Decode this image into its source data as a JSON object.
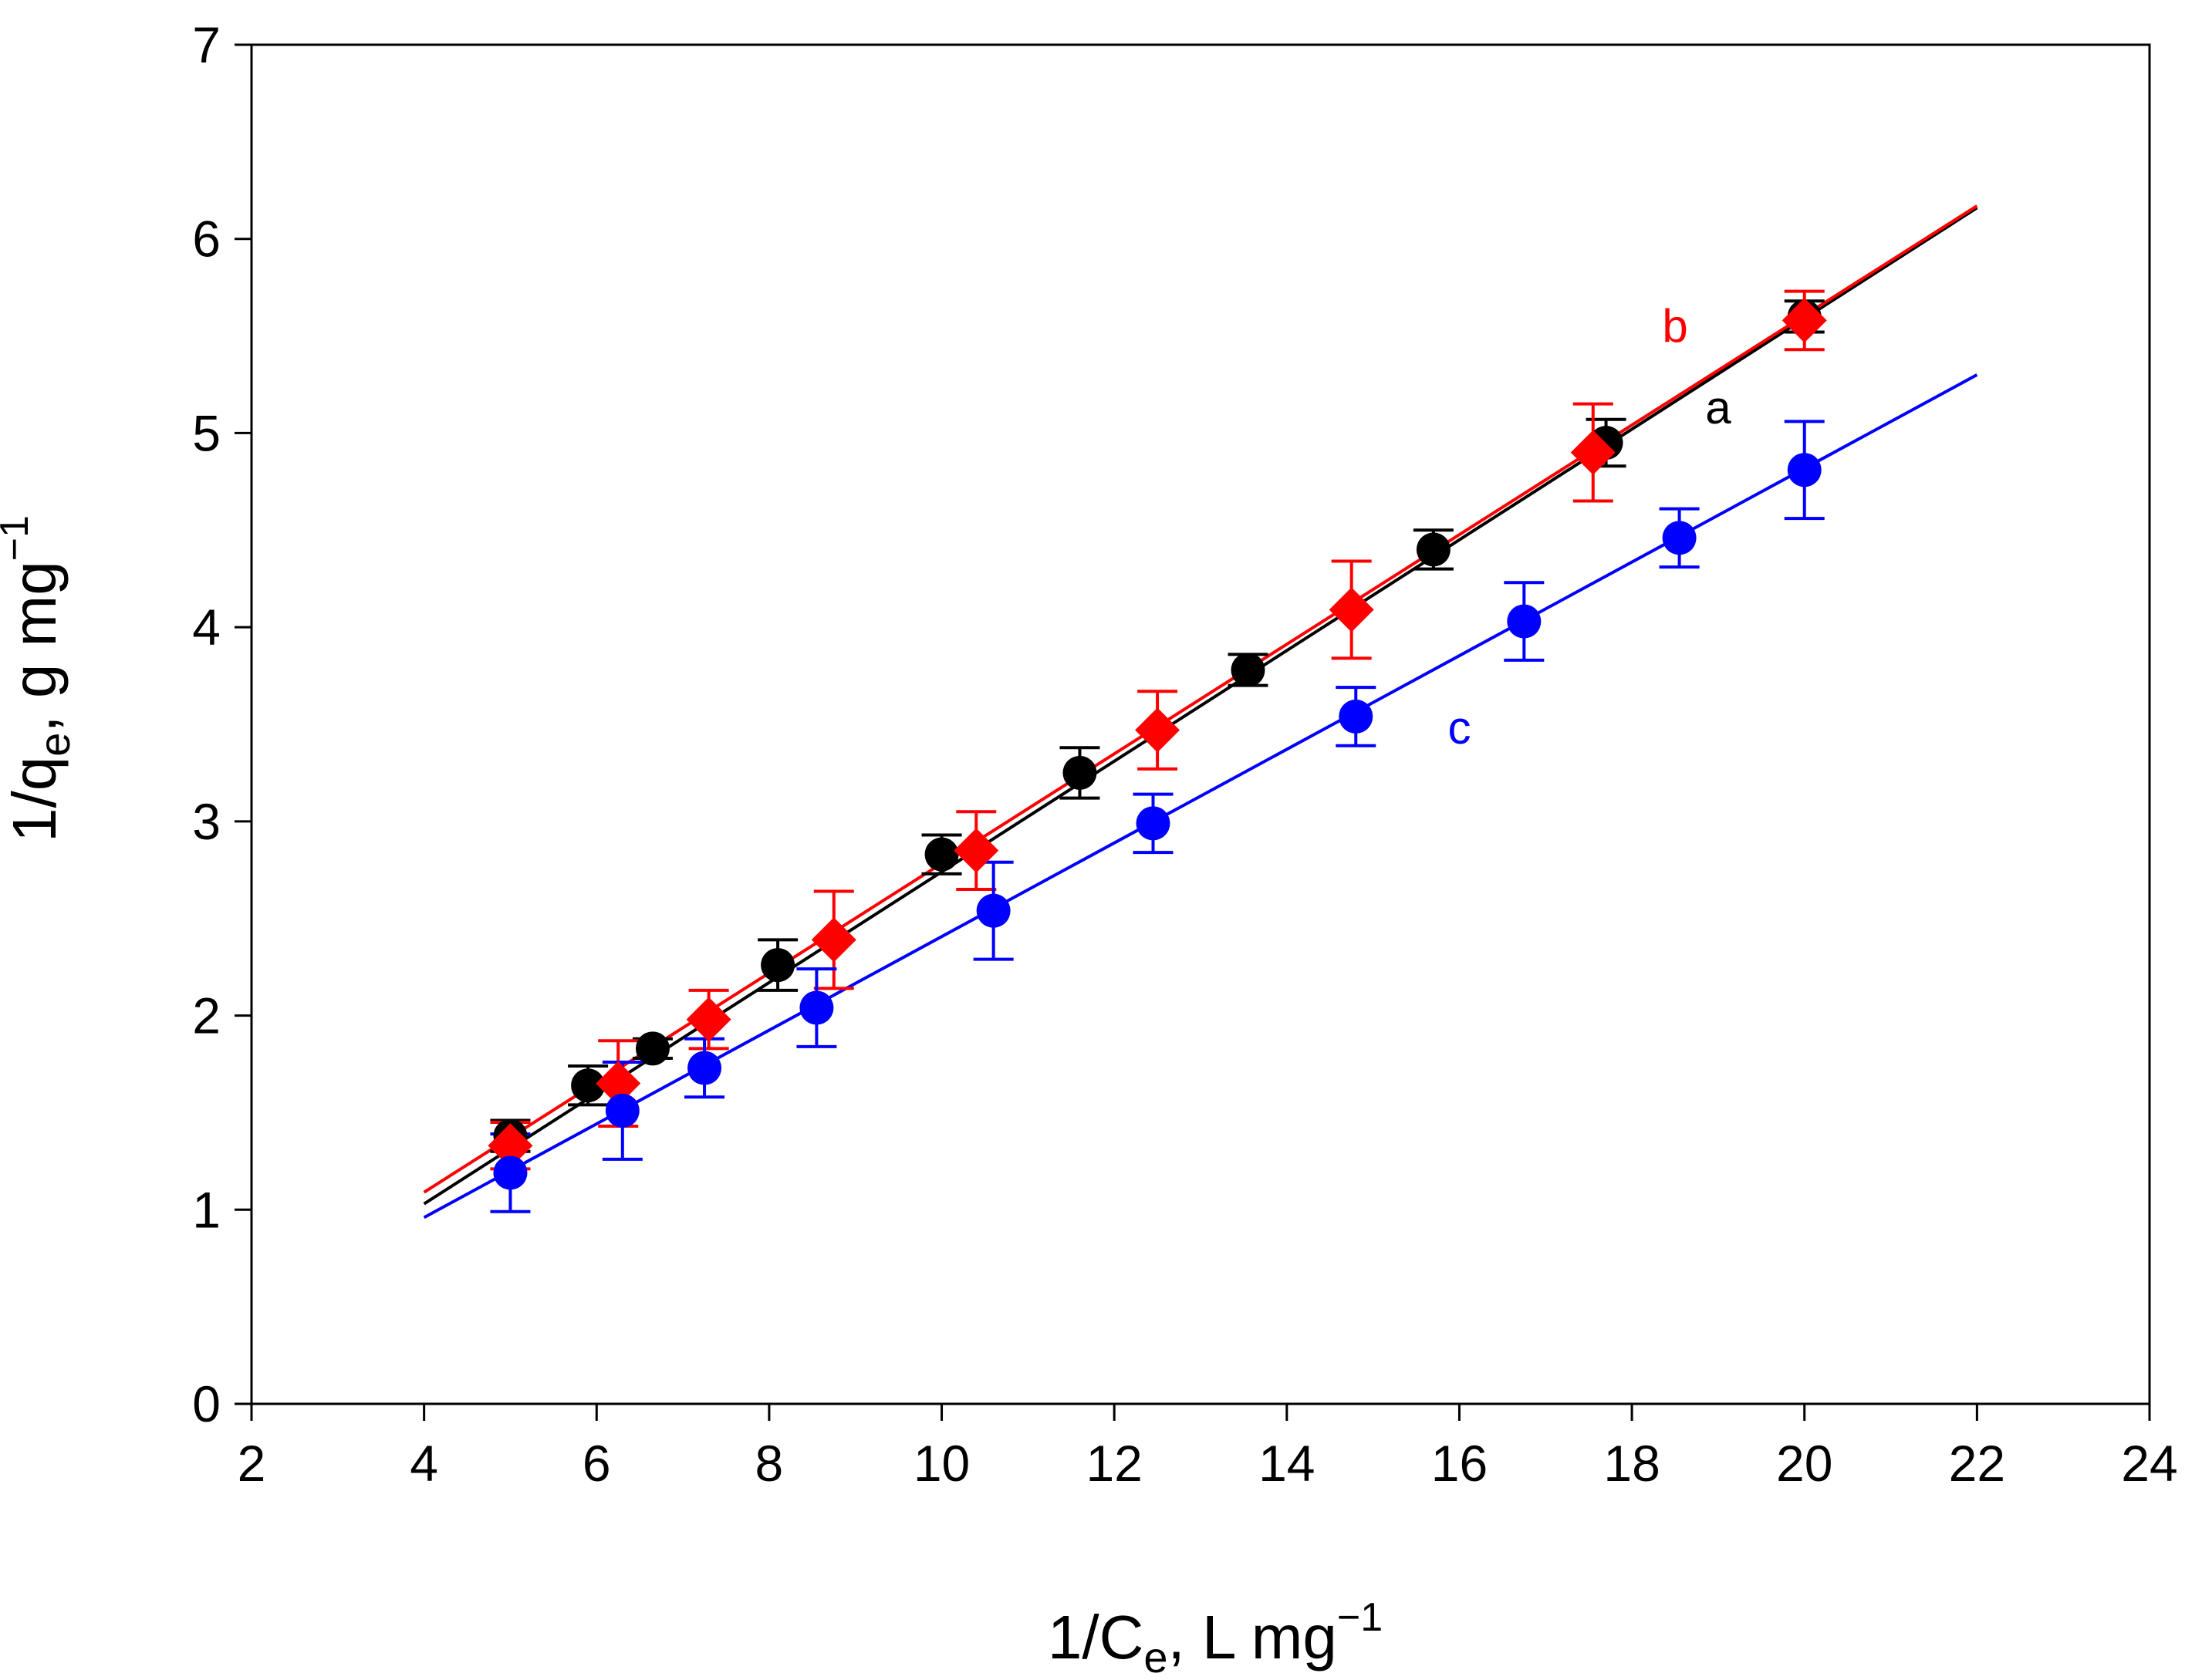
{
  "chart_data": {
    "type": "scatter",
    "title": "",
    "xlabel": {
      "main": "1/C",
      "sub": "e",
      "rest": ", L mg",
      "sup": "−1"
    },
    "ylabel": {
      "main": "1/q",
      "sub": "e",
      "rest": ", g mg",
      "sup": "−1"
    },
    "xlim": [
      2,
      24
    ],
    "ylim": [
      0,
      7
    ],
    "xticks": [
      2,
      4,
      6,
      8,
      10,
      12,
      14,
      16,
      18,
      20,
      22,
      24
    ],
    "yticks": [
      0,
      1,
      2,
      3,
      4,
      5,
      6,
      7
    ],
    "grid": false,
    "series": [
      {
        "name": "a",
        "color": "#000000",
        "marker": "circle",
        "x": [
          5.0,
          5.9,
          6.65,
          8.1,
          10.0,
          11.6,
          13.55,
          15.7,
          17.7,
          20.0
        ],
        "y": [
          1.38,
          1.64,
          1.83,
          2.26,
          2.83,
          3.25,
          3.78,
          4.4,
          4.95,
          5.6
        ],
        "err": [
          0.08,
          0.1,
          0.05,
          0.13,
          0.1,
          0.13,
          0.08,
          0.1,
          0.12,
          0.08
        ],
        "fit": {
          "x": [
            4,
            22
          ],
          "y": [
            1.03,
            6.16
          ]
        },
        "label_pos": {
          "x": 19.0,
          "y": 5.05
        }
      },
      {
        "name": "b",
        "color": "#ff0000",
        "marker": "diamond",
        "x": [
          5.0,
          6.25,
          7.3,
          8.75,
          10.4,
          12.5,
          14.75,
          17.55,
          20.0
        ],
        "y": [
          1.33,
          1.65,
          1.98,
          2.39,
          2.85,
          3.47,
          4.09,
          4.9,
          5.58
        ],
        "err": [
          0.12,
          0.22,
          0.15,
          0.25,
          0.2,
          0.2,
          0.25,
          0.25,
          0.15
        ],
        "fit": {
          "x": [
            4,
            22
          ],
          "y": [
            1.09,
            6.17
          ]
        },
        "label_pos": {
          "x": 18.5,
          "y": 5.47
        }
      },
      {
        "name": "c",
        "color": "#0000ff",
        "marker": "circle",
        "x": [
          5.0,
          6.3,
          7.25,
          8.55,
          10.6,
          12.45,
          14.8,
          16.75,
          18.55,
          20.0
        ],
        "y": [
          1.19,
          1.51,
          1.73,
          2.04,
          2.54,
          2.99,
          3.54,
          4.03,
          4.46,
          4.81
        ],
        "err": [
          0.2,
          0.25,
          0.15,
          0.2,
          0.25,
          0.15,
          0.15,
          0.2,
          0.15,
          0.25
        ],
        "fit": {
          "x": [
            4,
            22
          ],
          "y": [
            0.96,
            5.3
          ]
        },
        "label_pos": {
          "x": 16.0,
          "y": 3.4
        }
      }
    ]
  }
}
